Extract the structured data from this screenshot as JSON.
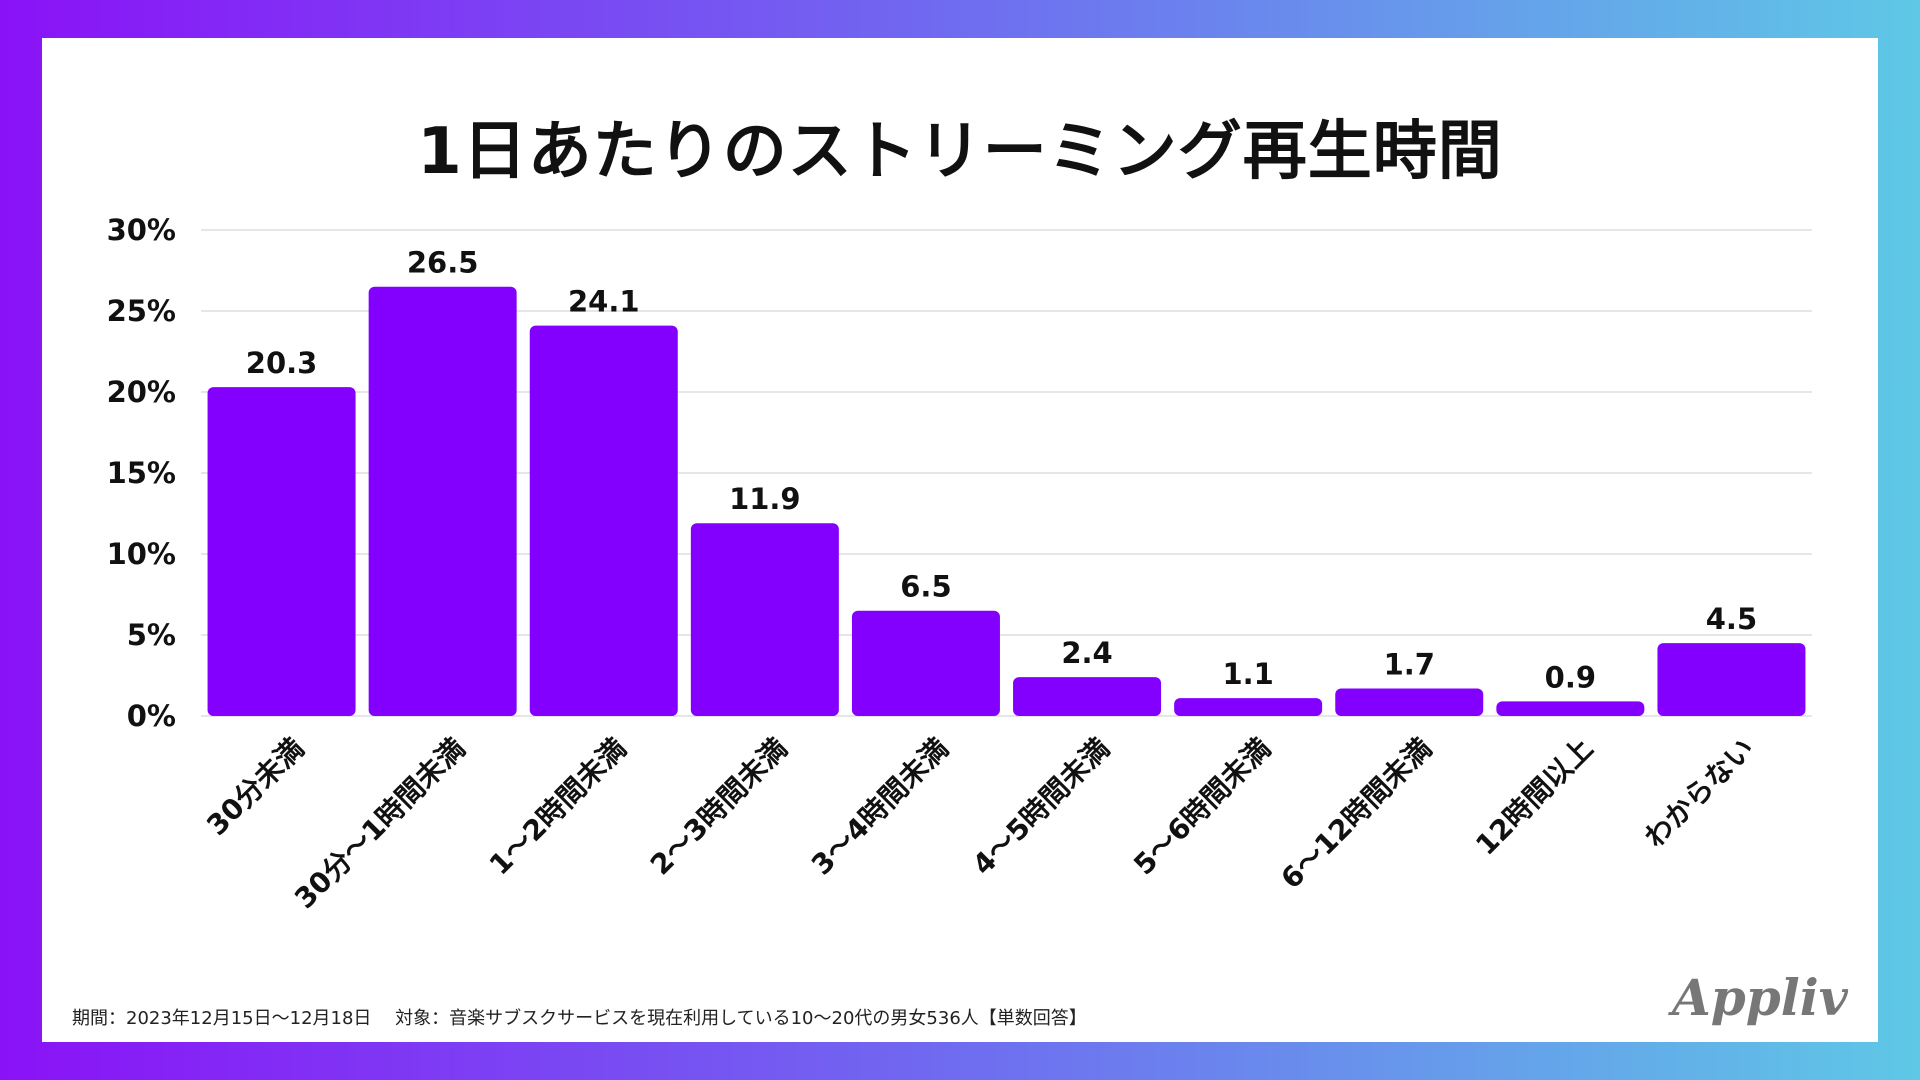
{
  "title": "1日あたりのストリーミング再生時間",
  "footnote": "期間：2023年12月15日〜12月18日　 対象：音楽サブスクサービスを現在利用している10〜20代の男女536人【単数回答】",
  "logo": "Appliv",
  "colors": {
    "bar": "#8300ff",
    "grid": "#dddddd",
    "text": "#111111"
  },
  "chart_data": {
    "type": "bar",
    "title": "1日あたりのストリーミング再生時間",
    "xlabel": "",
    "ylabel": "",
    "categories": [
      "30分未満",
      "30分〜1時間未満",
      "1〜2時間未満",
      "2〜3時間未満",
      "3〜4時間未満",
      "4〜5時間未満",
      "5〜6時間未満",
      "6〜12時間未満",
      "12時間以上",
      "わからない"
    ],
    "values": [
      20.3,
      26.5,
      24.1,
      11.9,
      6.5,
      2.4,
      1.1,
      1.7,
      0.9,
      4.5
    ],
    "value_labels": [
      "20.3",
      "26.5",
      "24.1",
      "11.9",
      "6.5",
      "2.4",
      "1.1",
      "1.7",
      "0.9",
      "4.5"
    ],
    "ylim": [
      0,
      30
    ],
    "yticks": [
      0,
      5,
      10,
      15,
      20,
      25,
      30
    ],
    "ytick_labels": [
      "0%",
      "5%",
      "10%",
      "15%",
      "20%",
      "25%",
      "30%"
    ],
    "grid": true
  }
}
